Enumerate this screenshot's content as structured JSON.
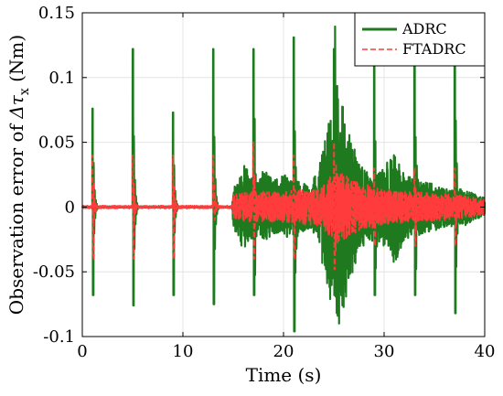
{
  "chart_data": {
    "type": "line",
    "xlabel": "Time (s)",
    "ylabel_prefix": "Observation error of ",
    "ylabel_symbol": "Δτ",
    "ylabel_subscript": "x",
    "ylabel_unit": " (Nm)",
    "xlim": [
      0,
      40
    ],
    "ylim": [
      -0.1,
      0.15
    ],
    "x_ticks": [
      0,
      10,
      20,
      30,
      40
    ],
    "x_tick_labels": [
      "0",
      "10",
      "20",
      "30",
      "40"
    ],
    "y_ticks": [
      -0.1,
      -0.05,
      0,
      0.05,
      0.1,
      0.15
    ],
    "y_tick_labels": [
      "-0.1",
      "-0.05",
      "0",
      "0.05",
      "0.1",
      "0.15"
    ],
    "grid": true,
    "legend_position": "top-right",
    "series": [
      {
        "name": "ADRC",
        "color": "#1f7a1f",
        "style": "solid",
        "spikes": [
          {
            "x": 1.0,
            "peak": 0.076,
            "trough": -0.068
          },
          {
            "x": 5.0,
            "peak": 0.122,
            "trough": -0.076
          },
          {
            "x": 9.0,
            "peak": 0.073,
            "trough": -0.068
          },
          {
            "x": 13.0,
            "peak": 0.122,
            "trough": -0.075
          },
          {
            "x": 17.0,
            "peak": 0.122,
            "trough": -0.068
          },
          {
            "x": 21.0,
            "peak": 0.131,
            "trough": -0.096
          },
          {
            "x": 25.0,
            "peak": 0.122,
            "trough": -0.068
          },
          {
            "x": 29.0,
            "peak": 0.122,
            "trough": -0.068
          },
          {
            "x": 33.0,
            "peak": 0.122,
            "trough": -0.068
          },
          {
            "x": 37.0,
            "peak": 0.122,
            "trough": -0.082
          }
        ],
        "envelope": [
          {
            "x": 0.0,
            "amp": 0.0005
          },
          {
            "x": 14.9,
            "amp": 0.0005
          },
          {
            "x": 15.0,
            "amp": 0.015
          },
          {
            "x": 16.0,
            "amp": 0.034
          },
          {
            "x": 17.5,
            "amp": 0.02
          },
          {
            "x": 18.0,
            "amp": 0.03
          },
          {
            "x": 19.0,
            "amp": 0.02
          },
          {
            "x": 20.0,
            "amp": 0.025
          },
          {
            "x": 21.5,
            "amp": 0.02
          },
          {
            "x": 22.5,
            "amp": 0.017
          },
          {
            "x": 23.5,
            "amp": 0.03
          },
          {
            "x": 24.5,
            "amp": 0.07
          },
          {
            "x": 25.5,
            "amp": 0.095
          },
          {
            "x": 26.5,
            "amp": 0.06
          },
          {
            "x": 27.5,
            "amp": 0.035
          },
          {
            "x": 28.5,
            "amp": 0.025
          },
          {
            "x": 30.0,
            "amp": 0.03
          },
          {
            "x": 31.0,
            "amp": 0.045
          },
          {
            "x": 32.0,
            "amp": 0.025
          },
          {
            "x": 34.0,
            "amp": 0.02
          },
          {
            "x": 35.5,
            "amp": 0.017
          },
          {
            "x": 36.5,
            "amp": 0.015
          },
          {
            "x": 38.0,
            "amp": 0.015
          },
          {
            "x": 39.0,
            "amp": 0.01
          },
          {
            "x": 40.0,
            "amp": 0.007
          }
        ]
      },
      {
        "name": "FTADRC",
        "color": "#ff3b3b",
        "style": "dashed",
        "spikes": [
          {
            "x": 1.0,
            "peak": 0.04,
            "trough": -0.04
          },
          {
            "x": 5.0,
            "peak": 0.04,
            "trough": -0.04
          },
          {
            "x": 9.0,
            "peak": 0.04,
            "trough": -0.04
          },
          {
            "x": 13.0,
            "peak": 0.04,
            "trough": -0.004
          },
          {
            "x": 17.0,
            "peak": 0.05,
            "trough": -0.04
          },
          {
            "x": 21.0,
            "peak": 0.04,
            "trough": -0.04
          },
          {
            "x": 25.0,
            "peak": 0.05,
            "trough": -0.048
          },
          {
            "x": 29.0,
            "peak": 0.03,
            "trough": -0.03
          },
          {
            "x": 33.0,
            "peak": 0.03,
            "trough": -0.03
          },
          {
            "x": 37.0,
            "peak": 0.03,
            "trough": -0.03
          }
        ],
        "envelope": [
          {
            "x": 0.0,
            "amp": 0.0012
          },
          {
            "x": 14.9,
            "amp": 0.0012
          },
          {
            "x": 15.0,
            "amp": 0.01
          },
          {
            "x": 17.0,
            "amp": 0.012
          },
          {
            "x": 20.0,
            "amp": 0.012
          },
          {
            "x": 23.5,
            "amp": 0.015
          },
          {
            "x": 25.5,
            "amp": 0.03
          },
          {
            "x": 27.0,
            "amp": 0.02
          },
          {
            "x": 30.0,
            "amp": 0.014
          },
          {
            "x": 33.0,
            "amp": 0.012
          },
          {
            "x": 37.0,
            "amp": 0.01
          },
          {
            "x": 40.0,
            "amp": 0.006
          }
        ]
      }
    ]
  }
}
